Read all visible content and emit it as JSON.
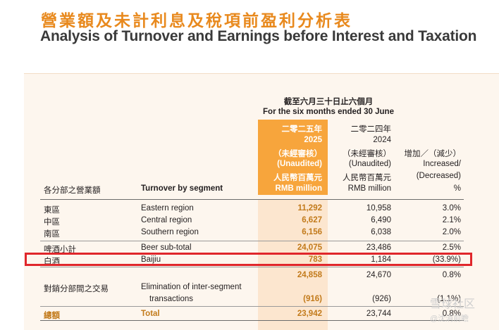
{
  "title": {
    "cn": "營業額及未計利息及稅項前盈利分析表",
    "en": "Analysis of Turnover and Earnings before Interest and Taxation"
  },
  "header": {
    "period_cn": "截至六月三十日止六個月",
    "period_en": "For the six months ended 30 June",
    "segment_cn": "各分部之營業額",
    "segment_en": "Turnover by segment",
    "col2025": [
      "二零二五年",
      "2025",
      "（未經審核）",
      "(Unaudited)",
      "人民幣百萬元",
      "RMB million"
    ],
    "col2024": [
      "二零二四年",
      "2024",
      "（未經審核）",
      "(Unaudited)",
      "人民幣百萬元",
      "RMB million"
    ],
    "colchg": [
      "增加／（減少）",
      "Increased/",
      "(Decreased)",
      "%"
    ]
  },
  "rows": [
    {
      "cn": "東區",
      "en": "Eastern region",
      "v2025": "11,292",
      "v2024": "10,958",
      "chg": "3.0%"
    },
    {
      "cn": "中區",
      "en": "Central region",
      "v2025": "6,627",
      "v2024": "6,490",
      "chg": "2.1%"
    },
    {
      "cn": "南區",
      "en": "Southern region",
      "v2025": "6,156",
      "v2024": "6,038",
      "chg": "2.0%"
    },
    {
      "cn": "啤酒小計",
      "en": "Beer sub-total",
      "v2025": "24,075",
      "v2024": "23,486",
      "chg": "2.5%"
    },
    {
      "cn": "白酒",
      "en": "Baijiu",
      "v2025": "783",
      "v2024": "1,184",
      "chg": "(33.9%)"
    },
    {
      "cn": "",
      "en": "",
      "v2025": "24,858",
      "v2024": "24,670",
      "chg": "0.8%"
    },
    {
      "cn": "對銷分部間之交易",
      "en": "Elimination of inter-segment",
      "en2": "transactions",
      "v2025": "(916)",
      "v2024": "(926)",
      "chg": "(1.1%)"
    },
    {
      "cn": "總額",
      "en": "Total",
      "v2025": "23,942",
      "v2024": "23,744",
      "chg": "0.8%"
    }
  ],
  "watermark": {
    "a": "雪球社区",
    "b": "@沈消前瞻"
  },
  "colors": {
    "accent": "#e8891d",
    "highlight_col": "#f7a53c",
    "highlight_body": "#fce6cf",
    "annotation": "#e0262b"
  }
}
